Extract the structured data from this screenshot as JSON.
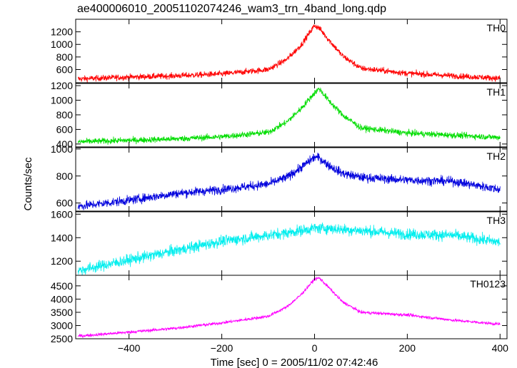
{
  "chart_data": {
    "type": "line",
    "title": "ae400006010_20051102074246_wam3_trn_4band_long.qdp",
    "xlabel": "Time [sec] 0 = 2005/11/02 07:42:46",
    "ylabel": "Counts/sec",
    "xlim": [
      -515,
      415
    ],
    "xticks": [
      -400,
      -200,
      0,
      200,
      400
    ],
    "x_knots": [
      -510,
      -400,
      -300,
      -200,
      -100,
      -60,
      -30,
      0,
      10,
      30,
      60,
      100,
      200,
      300,
      400
    ],
    "panels": [
      {
        "name": "TH0",
        "color": "#ff0000",
        "ylim": [
          390,
          1400
        ],
        "yticks": [
          600,
          800,
          1000,
          1200
        ],
        "noise": 40,
        "values": [
          450,
          480,
          500,
          530,
          600,
          760,
          980,
          1300,
          1260,
          1080,
          820,
          620,
          540,
          500,
          460
        ]
      },
      {
        "name": "TH1",
        "color": "#00dd00",
        "ylim": [
          360,
          1230
        ],
        "yticks": [
          400,
          600,
          800,
          1000,
          1200
        ],
        "noise": 35,
        "values": [
          430,
          450,
          470,
          500,
          560,
          700,
          880,
          1100,
          1160,
          1000,
          800,
          620,
          550,
          520,
          490
        ]
      },
      {
        "name": "TH2",
        "color": "#0000dd",
        "ylim": [
          540,
          1010
        ],
        "yticks": [
          600,
          800,
          1000
        ],
        "noise": 28,
        "values": [
          575,
          620,
          670,
          700,
          740,
          790,
          860,
          940,
          935,
          880,
          820,
          790,
          770,
          760,
          700
        ]
      },
      {
        "name": "TH3",
        "color": "#00eeee",
        "ylim": [
          1080,
          1620
        ],
        "yticks": [
          1200,
          1400,
          1600
        ],
        "noise": 40,
        "values": [
          1120,
          1210,
          1290,
          1370,
          1420,
          1440,
          1460,
          1480,
          1480,
          1480,
          1470,
          1460,
          1430,
          1420,
          1360
        ]
      },
      {
        "name": "TH0123",
        "color": "#ff00ff",
        "ylim": [
          2500,
          4900
        ],
        "yticks": [
          2500,
          3000,
          3500,
          4000,
          4500
        ],
        "noise": 50,
        "values": [
          2600,
          2750,
          2900,
          3100,
          3350,
          3700,
          4150,
          4750,
          4800,
          4450,
          3900,
          3500,
          3400,
          3200,
          3050
        ]
      }
    ]
  }
}
